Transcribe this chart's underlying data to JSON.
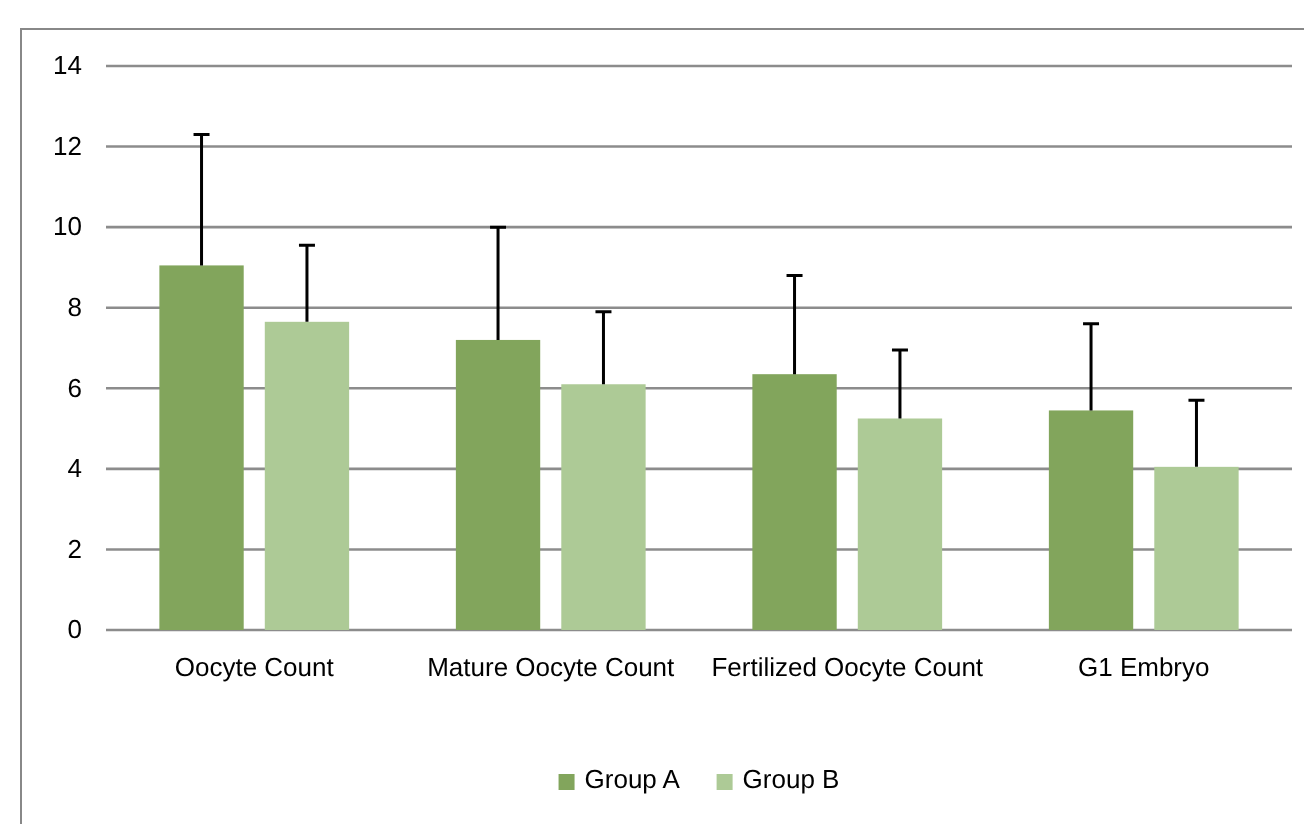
{
  "chart_data": {
    "type": "bar",
    "categories": [
      "Oocyte Count",
      "Mature Oocyte Count",
      "Fertilized Oocyte Count",
      "G1 Embryo"
    ],
    "series": [
      {
        "name": "Group A",
        "color": "#82a55c",
        "values": [
          9.05,
          7.2,
          6.35,
          5.45
        ],
        "errors": [
          [
            9.05,
            12.3
          ],
          [
            7.2,
            10
          ],
          [
            6.35,
            8.8
          ],
          [
            5.45,
            7.6
          ]
        ]
      },
      {
        "name": "Group B",
        "color": "#adca96",
        "values": [
          7.65,
          6.1,
          5.25,
          4.05
        ],
        "errors": [
          [
            7.65,
            9.55
          ],
          [
            6.1,
            7.9
          ],
          [
            5.25,
            6.95
          ],
          [
            4.05,
            5.7
          ]
        ]
      }
    ],
    "ylim": [
      0,
      14
    ],
    "yticks": [
      0,
      2,
      4,
      6,
      8,
      10,
      12,
      14
    ],
    "grid": "y",
    "legend": "bottom"
  }
}
